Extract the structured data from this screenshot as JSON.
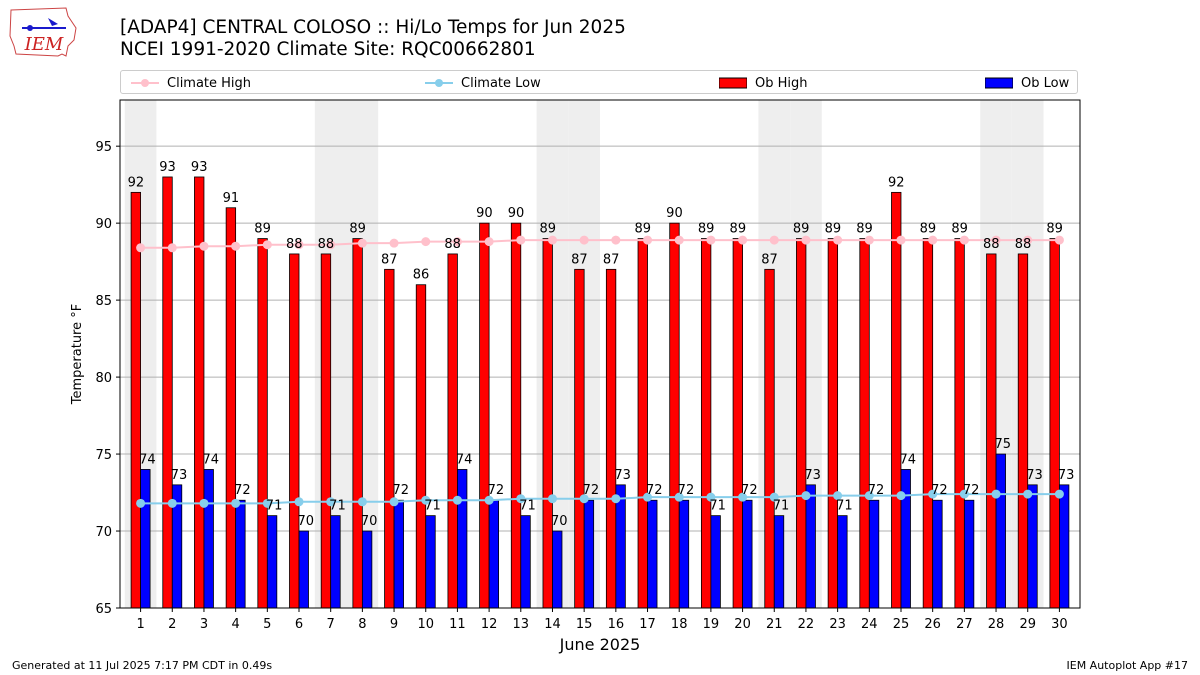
{
  "header": {
    "title": "[ADAP4] CENTRAL COLOSO :: Hi/Lo Temps for Jun 2025",
    "subtitle": "NCEI 1991-2020 Climate Site: RQC00662801"
  },
  "logo": {
    "text": "IEM"
  },
  "legend": [
    {
      "label": "Climate High",
      "kind": "line",
      "color": "#ffc0cb"
    },
    {
      "label": "Climate Low",
      "kind": "line",
      "color": "#87ceeb"
    },
    {
      "label": "Ob High",
      "kind": "bar",
      "color": "#ff0000"
    },
    {
      "label": "Ob Low",
      "kind": "bar",
      "color": "#0000ff"
    }
  ],
  "chart_data": {
    "type": "bar",
    "xlabel": "June 2025",
    "ylabel": "Temperature °F",
    "ylim": [
      65,
      98
    ],
    "yticks": [
      65,
      70,
      75,
      80,
      85,
      90,
      95
    ],
    "grid": "horizontal",
    "legend_position": "top",
    "shaded_weekend_days": [
      1,
      7,
      8,
      14,
      15,
      21,
      22,
      28,
      29
    ],
    "categories": [
      "1",
      "2",
      "3",
      "4",
      "5",
      "6",
      "7",
      "8",
      "9",
      "10",
      "11",
      "12",
      "13",
      "14",
      "15",
      "16",
      "17",
      "18",
      "19",
      "20",
      "21",
      "22",
      "23",
      "24",
      "25",
      "26",
      "27",
      "28",
      "29",
      "30"
    ],
    "series": [
      {
        "name": "Ob High",
        "kind": "bar",
        "color": "#ff0000",
        "values": [
          92,
          93,
          93,
          91,
          89,
          88,
          88,
          89,
          87,
          86,
          88,
          90,
          90,
          89,
          87,
          87,
          89,
          90,
          89,
          89,
          87,
          89,
          89,
          89,
          92,
          89,
          89,
          88,
          88,
          89
        ]
      },
      {
        "name": "Ob Low",
        "kind": "bar",
        "color": "#0000ff",
        "values": [
          74,
          73,
          74,
          72,
          71,
          70,
          71,
          70,
          72,
          71,
          74,
          72,
          71,
          70,
          72,
          73,
          72,
          72,
          71,
          72,
          71,
          73,
          71,
          72,
          74,
          72,
          72,
          75,
          73,
          73
        ]
      },
      {
        "name": "Climate High",
        "kind": "line",
        "color": "#ffc0cb",
        "values": [
          88.4,
          88.4,
          88.5,
          88.5,
          88.6,
          88.6,
          88.6,
          88.7,
          88.7,
          88.8,
          88.8,
          88.8,
          88.9,
          88.9,
          88.9,
          88.9,
          88.9,
          88.9,
          88.9,
          88.9,
          88.9,
          88.9,
          88.9,
          88.9,
          88.9,
          88.9,
          88.9,
          88.9,
          88.9,
          88.9
        ]
      },
      {
        "name": "Climate Low",
        "kind": "line",
        "color": "#87ceeb",
        "values": [
          71.8,
          71.8,
          71.8,
          71.8,
          71.8,
          71.9,
          71.9,
          71.9,
          71.9,
          72.0,
          72.0,
          72.0,
          72.1,
          72.1,
          72.1,
          72.1,
          72.2,
          72.2,
          72.2,
          72.2,
          72.2,
          72.3,
          72.3,
          72.3,
          72.3,
          72.4,
          72.4,
          72.4,
          72.4,
          72.4
        ]
      }
    ]
  },
  "footer": {
    "left": "Generated at 11 Jul 2025 7:17 PM CDT in 0.49s",
    "right": "IEM Autoplot App #17"
  }
}
